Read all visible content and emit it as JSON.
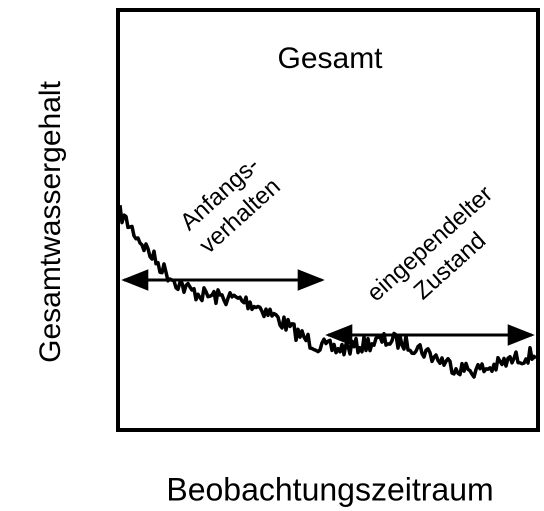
{
  "title": "Gesamt",
  "y_label": "Gesamtwassergehalt",
  "x_label": "Beobachtungszeitraum",
  "annotations": [
    {
      "lines": [
        "Anfangs-",
        "verhalten"
      ]
    },
    {
      "lines": [
        "eingependelter",
        "Zustand"
      ]
    }
  ]
}
